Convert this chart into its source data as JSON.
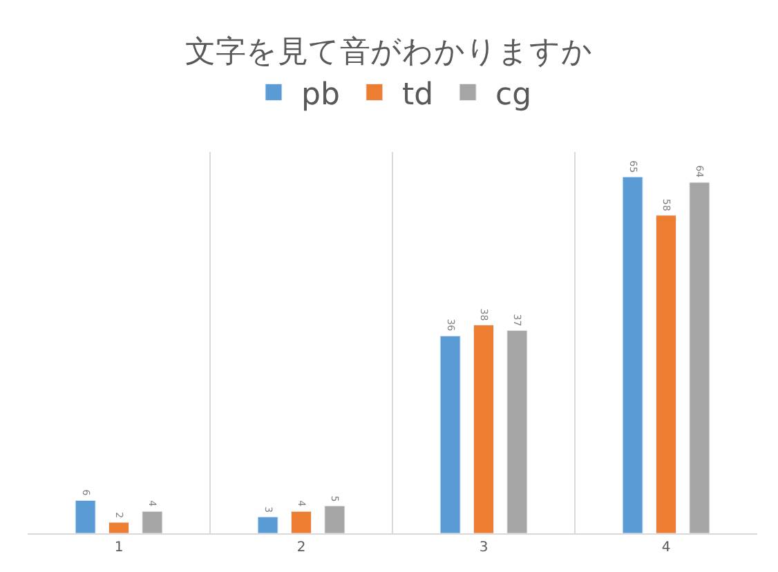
{
  "chart_data": {
    "type": "bar",
    "title": "文字を見て音がわかりますか",
    "categories": [
      "1",
      "2",
      "3",
      "4"
    ],
    "series": [
      {
        "name": "pb",
        "color": "#5b9bd5",
        "values": [
          6,
          3,
          36,
          65
        ]
      },
      {
        "name": "td",
        "color": "#ed7d31",
        "values": [
          2,
          4,
          38,
          58
        ]
      },
      {
        "name": "cg",
        "color": "#a5a5a5",
        "values": [
          4,
          5,
          37,
          64
        ]
      }
    ],
    "data_labels": true,
    "grid": "x",
    "legend": "top"
  }
}
